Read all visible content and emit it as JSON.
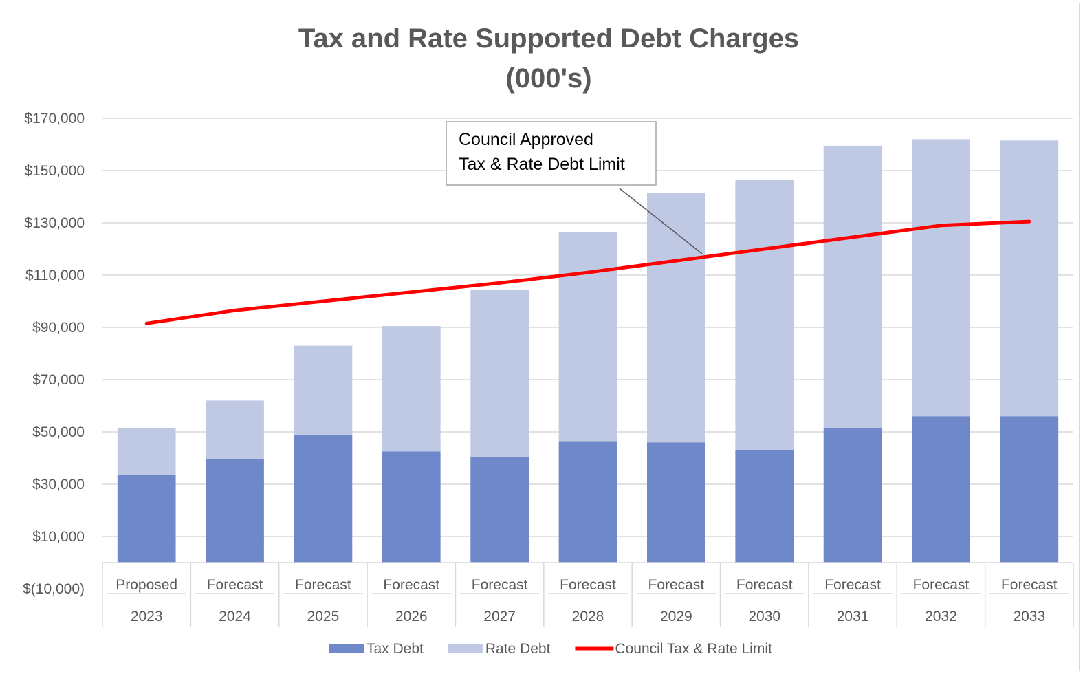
{
  "chart_data": {
    "type": "bar",
    "stacked": true,
    "title": "Tax and Rate Supported Debt Charges",
    "subtitle": "(000's)",
    "categories": [
      {
        "label": "Proposed",
        "year": "2023"
      },
      {
        "label": "Forecast",
        "year": "2024"
      },
      {
        "label": "Forecast",
        "year": "2025"
      },
      {
        "label": "Forecast",
        "year": "2026"
      },
      {
        "label": "Forecast",
        "year": "2027"
      },
      {
        "label": "Forecast",
        "year": "2028"
      },
      {
        "label": "Forecast",
        "year": "2029"
      },
      {
        "label": "Forecast",
        "year": "2030"
      },
      {
        "label": "Forecast",
        "year": "2031"
      },
      {
        "label": "Forecast",
        "year": "2032"
      },
      {
        "label": "Forecast",
        "year": "2033"
      }
    ],
    "series": [
      {
        "name": "Tax Debt",
        "kind": "bar",
        "color": "#6E88CA",
        "values": [
          33500,
          39500,
          49000,
          42500,
          40500,
          46500,
          46000,
          43000,
          51500,
          56000,
          56000
        ]
      },
      {
        "name": "Rate Debt",
        "kind": "bar",
        "color": "#BFC9E4",
        "values": [
          18000,
          22500,
          34000,
          48000,
          64000,
          80000,
          95500,
          103500,
          108000,
          106000,
          105500
        ]
      },
      {
        "name": "Council Tax & Rate Limit",
        "kind": "line",
        "color": "#FF0000",
        "values": [
          91500,
          96500,
          100000,
          103500,
          107000,
          111000,
          115500,
          120000,
          124500,
          129000,
          130500
        ]
      }
    ],
    "yticks": [
      "$170,000",
      "$150,000",
      "$130,000",
      "$110,000",
      "$90,000",
      "$70,000",
      "$50,000",
      "$30,000",
      "$10,000",
      "$(10,000)"
    ],
    "ylim": [
      -10000,
      170000
    ],
    "grid": true,
    "legend_position": "bottom",
    "annotation": {
      "lines": [
        "Council Approved",
        "Tax & Rate Debt Limit"
      ]
    }
  }
}
